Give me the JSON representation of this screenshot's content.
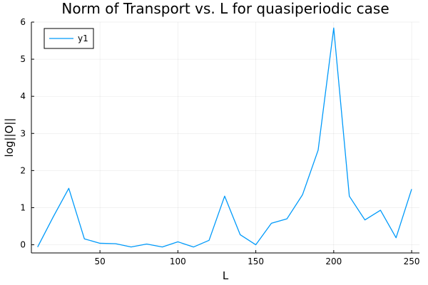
{
  "chart_data": {
    "type": "line",
    "title": "Norm of Transport vs. L for quasiperiodic case",
    "xlabel": "L",
    "ylabel": "log||O||",
    "xlim": [
      6,
      255
    ],
    "ylim": [
      -0.22,
      6.0
    ],
    "xticks": [
      50,
      100,
      150,
      200,
      250
    ],
    "yticks": [
      0,
      1,
      2,
      3,
      4,
      5,
      6
    ],
    "grid": true,
    "legend": {
      "position": "top-left",
      "entries": [
        "y1"
      ]
    },
    "series": [
      {
        "name": "y1",
        "color": "#009AFA",
        "x": [
          10,
          20,
          30,
          40,
          50,
          60,
          70,
          80,
          90,
          100,
          110,
          120,
          130,
          140,
          150,
          160,
          170,
          180,
          190,
          200,
          210,
          220,
          230,
          240,
          250
        ],
        "y": [
          -0.06,
          0.75,
          1.52,
          0.16,
          0.04,
          0.03,
          -0.06,
          0.02,
          -0.06,
          0.08,
          -0.06,
          0.12,
          1.31,
          0.27,
          0.0,
          0.58,
          0.7,
          1.35,
          2.55,
          5.84,
          1.31,
          0.67,
          0.93,
          0.19,
          1.5
        ]
      }
    ]
  }
}
